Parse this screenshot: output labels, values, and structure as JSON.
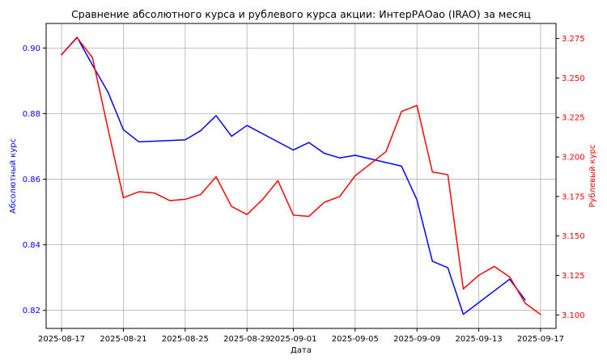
{
  "chart_data": {
    "type": "line",
    "title": "Сравнение абсолютного курса и рублевого курса акции: ИнтерРАОао (IRAO) за месяц",
    "xlabel": "Дата",
    "ylabel_left": "Абсолютный курс",
    "ylabel_right": "Рублевый курс",
    "grid": true,
    "colors": {
      "absolute": "#0000ff",
      "ruble": "#ff0000",
      "grid": "#b0b0b0",
      "axis": "#000000"
    },
    "x_ticks": [
      "2025-08-17",
      "2025-08-21",
      "2025-08-25",
      "2025-08-29",
      "2025-09-01",
      "2025-09-05",
      "2025-09-09",
      "2025-09-13",
      "2025-09-17"
    ],
    "y_left_ticks": [
      "0.82",
      "0.84",
      "0.86",
      "0.88",
      "0.90"
    ],
    "y_right_ticks": [
      "3.100",
      "3.125",
      "3.150",
      "3.175",
      "3.200",
      "3.225",
      "3.250",
      "3.275"
    ],
    "y_left_lim": [
      0.8145,
      0.9075
    ],
    "y_right_lim": [
      3.0915,
      3.2845
    ],
    "x_lim": [
      "2025-08-16",
      "2025-09-18"
    ],
    "series": [
      {
        "axis": "left",
        "color": "#0000ff",
        "points": [
          [
            "2025-08-17",
            0.898
          ],
          [
            "2025-08-18",
            0.9033
          ],
          [
            "2025-08-19",
            0.8948
          ],
          [
            "2025-08-20",
            0.8866
          ],
          [
            "2025-08-21",
            0.8751
          ],
          [
            "2025-08-22",
            0.8714
          ],
          [
            "2025-08-25",
            0.872
          ],
          [
            "2025-08-26",
            0.8748
          ],
          [
            "2025-08-27",
            0.8794
          ],
          [
            "2025-08-28",
            0.8731
          ],
          [
            "2025-08-29",
            0.8764
          ],
          [
            "2025-09-01",
            0.8689
          ],
          [
            "2025-09-02",
            0.8712
          ],
          [
            "2025-09-03",
            0.8679
          ],
          [
            "2025-09-04",
            0.8665
          ],
          [
            "2025-09-05",
            0.8673
          ],
          [
            "2025-09-08",
            0.864
          ],
          [
            "2025-09-09",
            0.8537
          ],
          [
            "2025-09-10",
            0.835
          ],
          [
            "2025-09-11",
            0.833
          ],
          [
            "2025-09-12",
            0.8188
          ],
          [
            "2025-09-15",
            0.8295
          ],
          [
            "2025-09-16",
            0.8232
          ]
        ]
      },
      {
        "axis": "right",
        "color": "#ff0000",
        "points": [
          [
            "2025-08-17",
            3.2648
          ],
          [
            "2025-08-18",
            3.2755
          ],
          [
            "2025-08-19",
            3.2628
          ],
          [
            "2025-08-20",
            3.218
          ],
          [
            "2025-08-21",
            3.1742
          ],
          [
            "2025-08-22",
            3.178
          ],
          [
            "2025-08-23",
            3.1772
          ],
          [
            "2025-08-24",
            3.1724
          ],
          [
            "2025-08-25",
            3.1732
          ],
          [
            "2025-08-26",
            3.1762
          ],
          [
            "2025-08-27",
            3.1875
          ],
          [
            "2025-08-28",
            3.1687
          ],
          [
            "2025-08-29",
            3.1636
          ],
          [
            "2025-08-30",
            3.173
          ],
          [
            "2025-08-31",
            3.185
          ],
          [
            "2025-09-01",
            3.1632
          ],
          [
            "2025-09-02",
            3.1624
          ],
          [
            "2025-09-03",
            3.1713
          ],
          [
            "2025-09-04",
            3.175
          ],
          [
            "2025-09-05",
            3.1881
          ],
          [
            "2025-09-07",
            3.2034
          ],
          [
            "2025-09-08",
            3.2288
          ],
          [
            "2025-09-09",
            3.2326
          ],
          [
            "2025-09-10",
            3.1905
          ],
          [
            "2025-09-11",
            3.1888
          ],
          [
            "2025-09-12",
            3.1165
          ],
          [
            "2025-09-13",
            3.1251
          ],
          [
            "2025-09-14",
            3.1307
          ],
          [
            "2025-09-15",
            3.1241
          ],
          [
            "2025-09-16",
            3.1075
          ],
          [
            "2025-09-17",
            3.1003
          ]
        ]
      }
    ]
  }
}
